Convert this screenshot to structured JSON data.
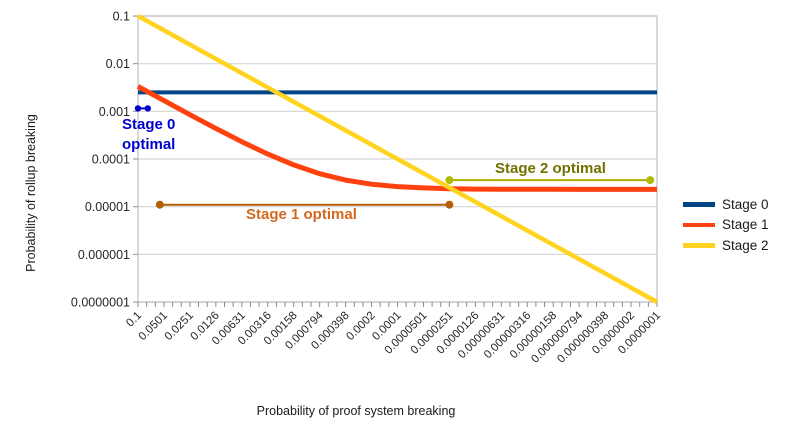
{
  "chart_data": {
    "type": "line",
    "title": "",
    "xlabel": "Probability of proof system breaking",
    "ylabel": "Probability of rollup breaking",
    "x_scale": "log",
    "y_scale": "log",
    "x_range": [
      0.1,
      1e-07
    ],
    "y_range": [
      0.1,
      1e-07
    ],
    "grid": "horizontal-only",
    "legend_position": "right",
    "x_tick_labels": [
      "0.1",
      "0.0501",
      "0.0251",
      "0.0126",
      "0.00631",
      "0.00316",
      "0.00158",
      "0.000794",
      "0.000398",
      "0.0002",
      "0.0001",
      "0.0000501",
      "0.0000251",
      "0.0000126",
      "0.00000631",
      "0.00000316",
      "0.00000158",
      "0.000000794",
      "0.000000398",
      "0.0000002",
      "0.0000001"
    ],
    "y_tick_labels": [
      "0.1",
      "0.01",
      "0.001",
      "0.0001",
      "0.00001",
      "0.000001",
      "0.0000001"
    ],
    "series": [
      {
        "name": "Stage 0",
        "color": "#004586",
        "width": 4,
        "x": [
          0.1,
          1e-07
        ],
        "y": [
          0.0025,
          0.0025
        ]
      },
      {
        "name": "Stage 1",
        "color": "#ff420e",
        "width": 5,
        "x": [
          0.1,
          0.0501,
          0.0251,
          0.0126,
          0.00631,
          0.00316,
          0.00158,
          0.000794,
          0.000398,
          0.0002,
          0.0001,
          5.01e-05,
          2.51e-05,
          1.26e-05,
          6.31e-06,
          3.16e-06,
          1.58e-06,
          7.94e-07,
          3.98e-07,
          2e-07,
          1e-07
        ],
        "y": [
          0.003323,
          0.001676,
          0.000851,
          0.000439,
          0.000231,
          0.000127,
          7.51e-05,
          4.92e-05,
          3.61e-05,
          2.96e-05,
          2.63e-05,
          2.47e-05,
          2.38e-05,
          2.34e-05,
          2.32e-05,
          2.31e-05,
          2.31e-05,
          2.3e-05,
          2.3e-05,
          2.3e-05,
          2.3e-05
        ]
      },
      {
        "name": "Stage 2",
        "color": "#ffd320",
        "width": 4.5,
        "x": [
          0.1,
          1e-07
        ],
        "y": [
          0.1,
          1e-07
        ]
      }
    ],
    "annotations": [
      {
        "label_lines": [
          "Stage 0",
          "optimal"
        ],
        "label": "Stage 0 optimal",
        "text_color": "#0000cd",
        "line_color": "#0000cd",
        "dot_color": "#0000cd",
        "dot_r": 3.2,
        "x": [
          0.1,
          0.077
        ],
        "y": 0.00115
      },
      {
        "label": "Stage 1 optimal",
        "text_color": "#d2691e",
        "line_color": "#b45f06",
        "dot_color": "#b45f06",
        "dot_r": 4,
        "x": [
          0.056,
          2.51e-05
        ],
        "y": 1.1e-05
      },
      {
        "label": "Stage 2 optimal",
        "text_color": "#717100",
        "line_color": "#adad00",
        "dot_color": "#b3bb00",
        "dot_r": 4,
        "x": [
          2.51e-05,
          1.2e-07
        ],
        "y": 3.6e-05
      }
    ]
  }
}
